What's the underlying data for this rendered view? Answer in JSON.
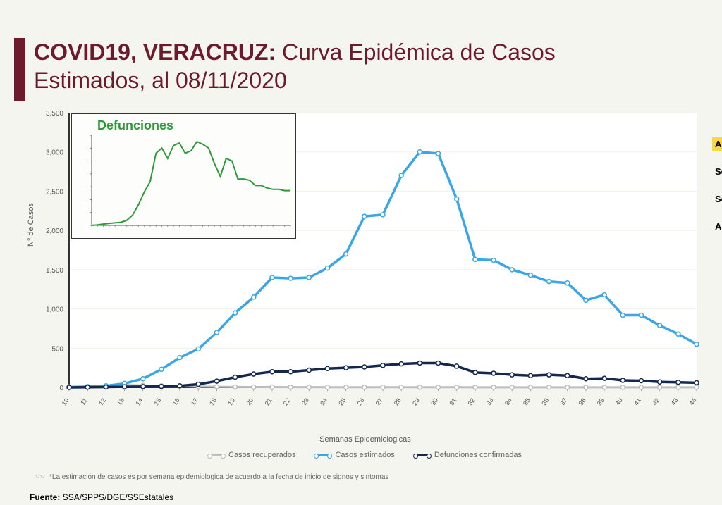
{
  "title": {
    "bold": "COVID19, VERACRUZ:",
    "rest": " Curva Epidémica de Casos Estimados, al 08/11/2020",
    "color": "#6d1a2c",
    "fontsize": 32
  },
  "sidebar_right": {
    "items": [
      "A",
      "Se",
      "Se",
      "Al"
    ],
    "yellow_index": 0
  },
  "footnote": "*La estimación de casos es por semana epidemiologica de acuerdo a la fecha de inicio de signos y sintomas",
  "source_label": "Fuente:",
  "source_value": "SSA/SPPS/DGE/SSEstatales",
  "chart": {
    "type": "line",
    "background_color": "#ffffff",
    "plot_border_color": "#333333",
    "grid_color": "#f0f0ec",
    "x": [
      10,
      11,
      12,
      13,
      14,
      15,
      16,
      17,
      18,
      19,
      20,
      21,
      22,
      23,
      24,
      25,
      26,
      27,
      28,
      29,
      30,
      31,
      32,
      33,
      34,
      35,
      36,
      37,
      38,
      39,
      40,
      41,
      42,
      43,
      44
    ],
    "xlim": [
      10,
      44
    ],
    "xtick_labels": [
      "10",
      "11",
      "12",
      "13",
      "14",
      "15",
      "16",
      "17",
      "18",
      "19",
      "20",
      "21",
      "22",
      "23",
      "24",
      "25",
      "26",
      "27",
      "28",
      "29",
      "30",
      "31",
      "32",
      "33",
      "34",
      "35",
      "36",
      "37",
      "38",
      "39",
      "40",
      "41",
      "42",
      "43",
      "44"
    ],
    "x_label": "Semanas Epidemiologicas",
    "x_label_fontsize": 11,
    "ylim": [
      0,
      3500
    ],
    "ytick_step": 500,
    "ytick_labels": [
      "0",
      "500",
      "1,000",
      "1,500",
      "2,000",
      "2,500",
      "3,000",
      "3,500"
    ],
    "y_label": "N° de Casos",
    "y_label_fontsize": 11,
    "series": [
      {
        "name": "Casos recuperados",
        "color": "#bdbdbd",
        "line_width": 3,
        "marker": "circle-open",
        "values": [
          5,
          8,
          15,
          30,
          25,
          20,
          15,
          10,
          8,
          6,
          5,
          4,
          3,
          3,
          2,
          2,
          2,
          2,
          2,
          2,
          2,
          2,
          1,
          1,
          1,
          1,
          1,
          1,
          1,
          1,
          1,
          1,
          1,
          1,
          1
        ]
      },
      {
        "name": "Casos estimados",
        "color": "#3aa6e6",
        "line_width": 3.5,
        "marker": "circle-open",
        "values": [
          5,
          10,
          20,
          50,
          110,
          230,
          380,
          490,
          700,
          950,
          1150,
          1400,
          1390,
          1400,
          1520,
          1700,
          2180,
          2200,
          2700,
          3000,
          2980,
          2400,
          1630,
          1620,
          1500,
          1430,
          1350,
          1330,
          1110,
          1180,
          920,
          920,
          790,
          680,
          550
        ]
      },
      {
        "name": "Defunciones confirmadas",
        "color": "#14274e",
        "line_width": 3.5,
        "marker": "circle-open",
        "values": [
          0,
          2,
          5,
          8,
          10,
          12,
          20,
          40,
          80,
          130,
          170,
          200,
          200,
          220,
          240,
          250,
          260,
          280,
          300,
          310,
          310,
          270,
          190,
          180,
          160,
          150,
          160,
          150,
          110,
          115,
          90,
          85,
          70,
          65,
          60
        ]
      }
    ],
    "legend_items": [
      "Casos recuperados",
      "Casos estimados",
      "Defunciones confirmadas"
    ]
  },
  "inset": {
    "title": "Defunciones",
    "title_color": "#2e9b3a",
    "title_fontsize": 18,
    "border_color": "#333333",
    "line_color": "#2e9b3a",
    "line_width": 2,
    "x": [
      10,
      11,
      12,
      13,
      14,
      15,
      16,
      17,
      18,
      19,
      20,
      21,
      22,
      23,
      24,
      25,
      26,
      27,
      28,
      29,
      30,
      31,
      32,
      33,
      34,
      35,
      36,
      37,
      38,
      39,
      40,
      41,
      42,
      43,
      44
    ],
    "ylim": [
      0,
      350
    ],
    "values": [
      0,
      2,
      5,
      8,
      10,
      12,
      20,
      40,
      80,
      130,
      170,
      280,
      300,
      260,
      310,
      320,
      280,
      290,
      325,
      315,
      300,
      240,
      190,
      260,
      250,
      180,
      180,
      175,
      155,
      155,
      145,
      140,
      140,
      135,
      135
    ]
  }
}
